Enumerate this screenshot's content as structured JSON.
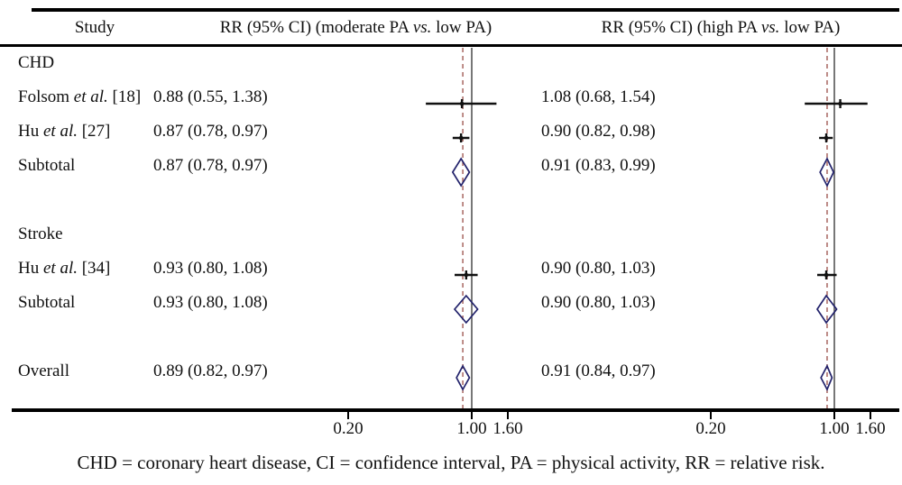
{
  "header": {
    "study_col": "Study",
    "moderate_col": {
      "pre": "RR (95% CI) (moderate PA ",
      "it": "vs.",
      "post": " low PA)"
    },
    "high_col": {
      "pre": "RR (95% CI) (high PA ",
      "it": "vs.",
      "post": " low PA)"
    }
  },
  "footnote": "CHD = coronary heart disease, CI = confidence interval, PA = physical activity, RR = relative risk.",
  "colors": {
    "text": "#111111",
    "rules": "#000000",
    "ref_line": "#4a4a4a",
    "overall_dashed_line": "#a15b55",
    "ci_marks": "#111111",
    "diamond_stroke": "#22226b",
    "background": "#ffffff"
  },
  "chart_data": {
    "type": "forest",
    "scale": "log10",
    "axis": {
      "ticks": [
        {
          "label": "0.20",
          "value": 0.2
        },
        {
          "label": "1.00",
          "value": 1.0
        },
        {
          "label": "1.60",
          "value": 1.6
        }
      ]
    },
    "panels": [
      {
        "name": "moderate PA vs. low PA",
        "key": "moderate",
        "ref_line": 1.0,
        "overall_dashed_at": 0.89
      },
      {
        "name": "high PA vs. low PA",
        "key": "high",
        "ref_line": 1.0,
        "overall_dashed_at": 0.91
      }
    ],
    "rows": [
      {
        "kind": "group",
        "label": "CHD"
      },
      {
        "kind": "study",
        "label": {
          "pre": "Folsom ",
          "it": "et al.",
          "post": " [18]"
        },
        "moderate": {
          "text": "0.88 (0.55, 1.38)",
          "est": 0.88,
          "lo": 0.55,
          "hi": 1.38
        },
        "high": {
          "text": "1.08 (0.68, 1.54)",
          "est": 1.08,
          "lo": 0.68,
          "hi": 1.54
        }
      },
      {
        "kind": "study",
        "label": {
          "pre": "Hu ",
          "it": "et al.",
          "post": " [27]"
        },
        "moderate": {
          "text": "0.87 (0.78, 0.97)",
          "est": 0.87,
          "lo": 0.78,
          "hi": 0.97
        },
        "high": {
          "text": "0.90 (0.82, 0.98)",
          "est": 0.9,
          "lo": 0.82,
          "hi": 0.98
        }
      },
      {
        "kind": "subtotal",
        "label": "Subtotal",
        "moderate": {
          "text": "0.87 (0.78, 0.97)",
          "est": 0.87,
          "lo": 0.78,
          "hi": 0.97
        },
        "high": {
          "text": "0.91 (0.83, 0.99)",
          "est": 0.91,
          "lo": 0.83,
          "hi": 0.99
        }
      },
      {
        "kind": "spacer"
      },
      {
        "kind": "group",
        "label": "Stroke"
      },
      {
        "kind": "study",
        "label": {
          "pre": "Hu ",
          "it": "et al.",
          "post": " [34]"
        },
        "moderate": {
          "text": "0.93 (0.80, 1.08)",
          "est": 0.93,
          "lo": 0.8,
          "hi": 1.08
        },
        "high": {
          "text": "0.90 (0.80, 1.03)",
          "est": 0.9,
          "lo": 0.8,
          "hi": 1.03
        }
      },
      {
        "kind": "subtotal",
        "label": "Subtotal",
        "moderate": {
          "text": "0.93 (0.80, 1.08)",
          "est": 0.93,
          "lo": 0.8,
          "hi": 1.08
        },
        "high": {
          "text": "0.90 (0.80, 1.03)",
          "est": 0.9,
          "lo": 0.8,
          "hi": 1.03
        }
      },
      {
        "kind": "spacer"
      },
      {
        "kind": "overall",
        "label": "Overall",
        "moderate": {
          "text": "0.89 (0.82, 0.97)",
          "est": 0.89,
          "lo": 0.82,
          "hi": 0.97
        },
        "high": {
          "text": "0.91 (0.84, 0.97)",
          "est": 0.91,
          "lo": 0.84,
          "hi": 0.97
        }
      }
    ]
  }
}
